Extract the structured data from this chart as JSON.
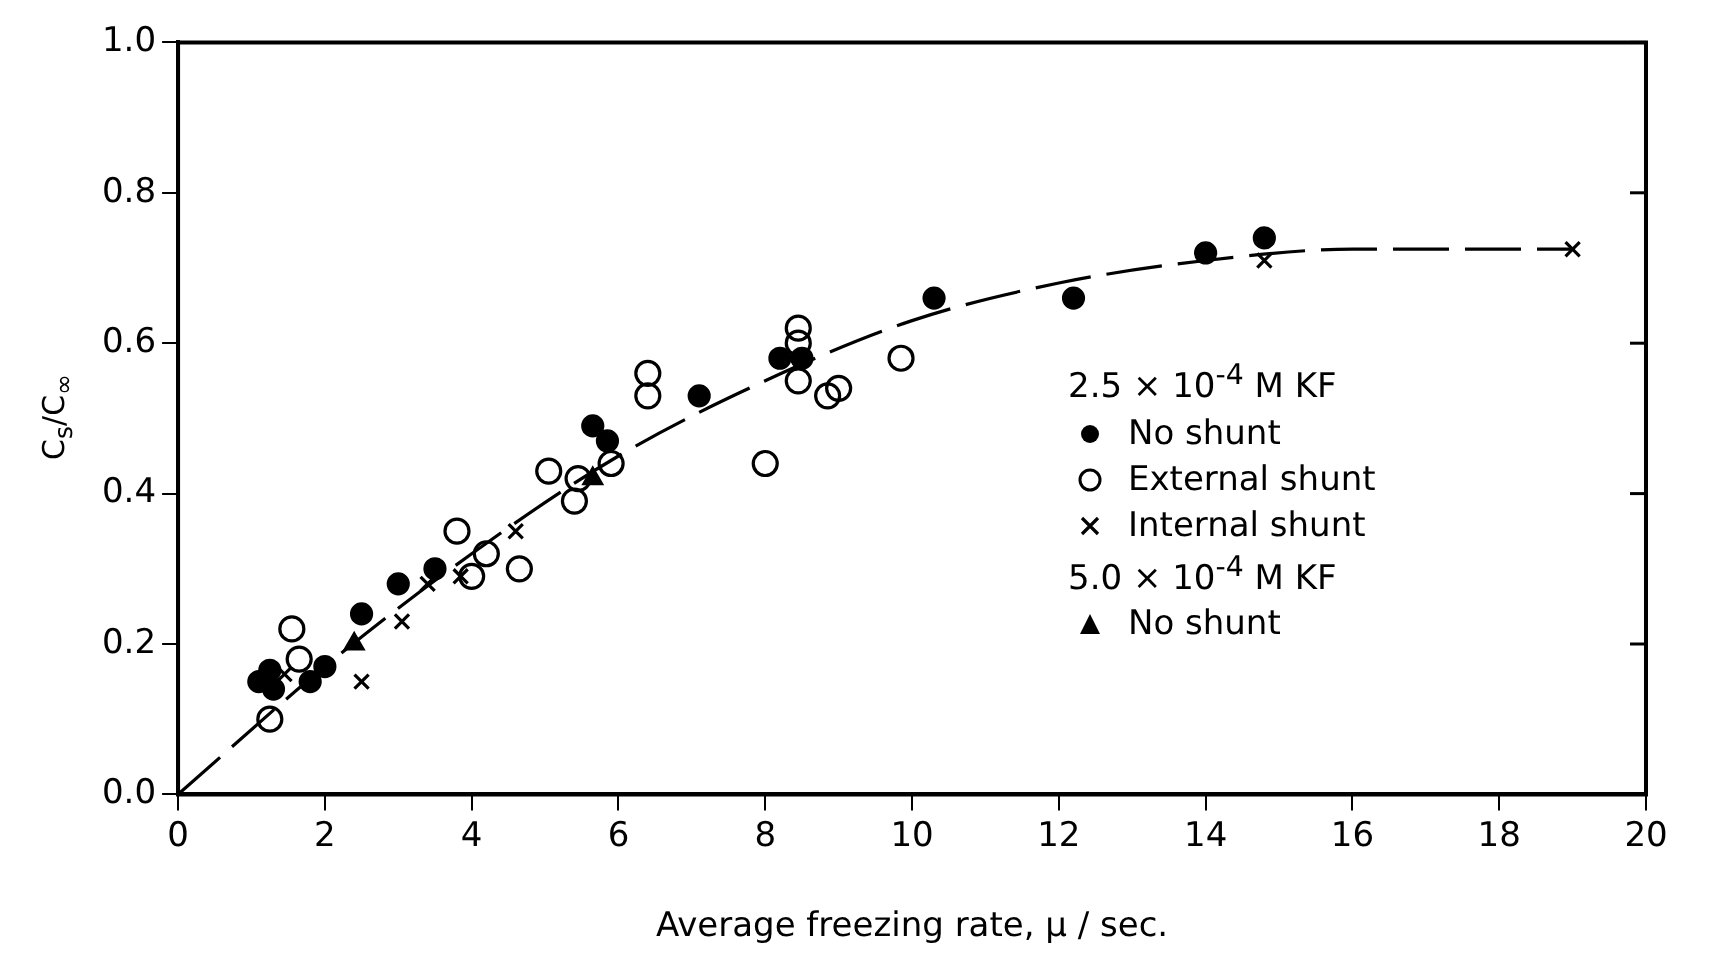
{
  "chart_data": {
    "type": "scatter",
    "xlabel": "Average freezing rate, μ / sec.",
    "ylabel": "C$_{s}$/C$_{∞}$",
    "xlim": [
      0,
      20
    ],
    "ylim": [
      0,
      1
    ],
    "xticks": [
      0,
      2,
      4,
      6,
      8,
      10,
      12,
      14,
      16,
      18,
      20
    ],
    "yticks": [
      {
        "value": 0,
        "label": "0.0"
      },
      {
        "value": 0.2,
        "label": "0.2"
      },
      {
        "value": 0.4,
        "label": "0.4"
      },
      {
        "value": 0.6,
        "label": "0.6"
      },
      {
        "value": 0.8,
        "label": "0.8"
      },
      {
        "value": 1,
        "label": "1.0"
      }
    ],
    "grid": false,
    "legend": "right",
    "annotations": [
      "2.5 × 10$^{-4}$ M KF",
      "5.0 × 10$^{-4}$ M KF"
    ],
    "series": [
      {
        "name": "No shunt",
        "color": "#000000",
        "marker": "circle",
        "x": [
          1.1,
          1.25,
          1.3,
          1.8,
          2.0,
          2.5,
          3.0,
          3.5,
          5.65,
          5.85,
          7.1,
          8.2,
          8.5,
          10.3,
          12.2,
          14.0,
          14.8
        ],
        "values": [
          0.15,
          0.165,
          0.14,
          0.15,
          0.17,
          0.24,
          0.28,
          0.3,
          0.49,
          0.47,
          0.53,
          0.58,
          0.58,
          0.66,
          0.66,
          0.72,
          0.74
        ]
      },
      {
        "name": "External shunt",
        "color": "#000000",
        "marker": "circle-open",
        "x": [
          1.25,
          1.55,
          1.65,
          3.8,
          4.0,
          4.2,
          4.65,
          5.05,
          5.4,
          5.45,
          5.9,
          6.4,
          6.4,
          8.0,
          8.45,
          8.45,
          8.45,
          8.85,
          9.0,
          9.85
        ],
        "values": [
          0.1,
          0.22,
          0.18,
          0.35,
          0.29,
          0.32,
          0.3,
          0.43,
          0.39,
          0.42,
          0.44,
          0.53,
          0.56,
          0.44,
          0.55,
          0.6,
          0.62,
          0.53,
          0.54,
          0.58
        ]
      },
      {
        "name": "Internal shunt",
        "color": "#000000",
        "marker": "cross",
        "x": [
          1.45,
          2.5,
          3.05,
          3.4,
          3.85,
          4.6,
          14.8,
          19.0
        ],
        "values": [
          0.16,
          0.15,
          0.23,
          0.28,
          0.29,
          0.35,
          0.71,
          0.725
        ]
      },
      {
        "name": "No shunt",
        "color": "#000000",
        "marker": "triangle",
        "x": [
          2.4,
          5.65
        ],
        "values": [
          0.2,
          0.42
        ]
      },
      {
        "type": "line",
        "color": "#000000",
        "marker": "none",
        "line_style": "dashed",
        "x": [
          0,
          2,
          4,
          6,
          8,
          10,
          12,
          14,
          16,
          19
        ],
        "values": [
          0,
          0.17,
          0.32,
          0.45,
          0.55,
          0.63,
          0.68,
          0.71,
          0.725,
          0.725
        ]
      }
    ]
  }
}
